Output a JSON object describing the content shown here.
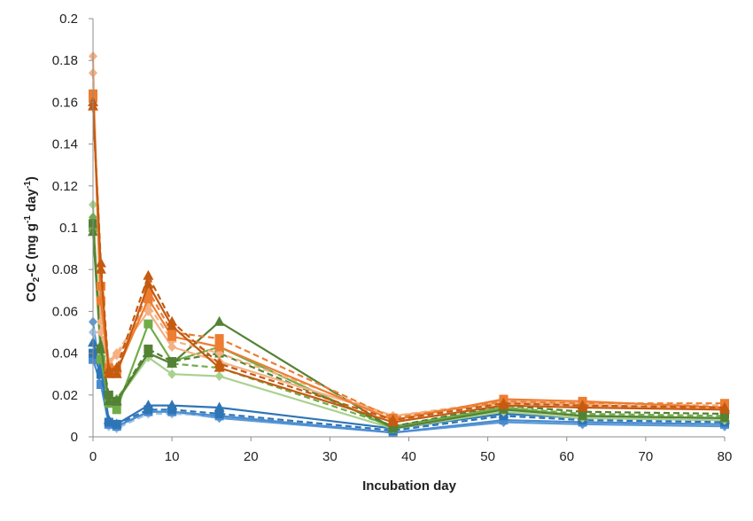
{
  "chart_data": {
    "type": "line",
    "title": "",
    "xlabel": "Incubation day",
    "ylabel": {
      "prefix": "CO",
      "sub": "2",
      "mid": "-C (mg g",
      "sup1": "-1",
      "mid2": " day",
      "sup2": "-1",
      "suffix": ")"
    },
    "xlim": [
      0,
      80
    ],
    "ylim": [
      0,
      0.2
    ],
    "xticks": [
      "0",
      "10",
      "20",
      "30",
      "40",
      "50",
      "60",
      "70",
      "80"
    ],
    "yticks": [
      "0",
      "0.02",
      "0.04",
      "0.06",
      "0.08",
      "0.1",
      "0.12",
      "0.14",
      "0.16",
      "0.18",
      "0.2"
    ],
    "grid": false,
    "legend": "none",
    "x": [
      0,
      1,
      2,
      3,
      7,
      10,
      16,
      38,
      52,
      62,
      80
    ],
    "series": [
      {
        "color": "#5B9BD5",
        "marker": "diamond",
        "dash": false,
        "values": [
          0.055,
          0.028,
          0.006,
          0.005,
          0.012,
          0.012,
          0.009,
          0.002,
          0.007,
          0.006,
          0.005
        ]
      },
      {
        "color": "#9DC3E6",
        "marker": "diamond",
        "dash": true,
        "values": [
          0.05,
          0.026,
          0.005,
          0.004,
          0.011,
          0.011,
          0.01,
          0.002,
          0.008,
          0.007,
          0.006
        ]
      },
      {
        "color": "#4A8BD0",
        "marker": "square",
        "dash": false,
        "values": [
          0.037,
          0.025,
          0.006,
          0.005,
          0.012,
          0.012,
          0.01,
          0.002,
          0.008,
          0.007,
          0.006
        ]
      },
      {
        "color": "#2E75B6",
        "marker": "square",
        "dash": true,
        "values": [
          0.04,
          0.03,
          0.007,
          0.006,
          0.013,
          0.013,
          0.011,
          0.003,
          0.01,
          0.008,
          0.007
        ]
      },
      {
        "color": "#2E75B6",
        "marker": "triangle",
        "dash": false,
        "values": [
          0.045,
          0.033,
          0.008,
          0.006,
          0.015,
          0.015,
          0.014,
          0.004,
          0.011,
          0.009,
          0.008
        ]
      },
      {
        "color": "#A9D18E",
        "marker": "diamond",
        "dash": false,
        "values": [
          0.111,
          0.04,
          0.016,
          0.017,
          0.038,
          0.03,
          0.029,
          0.004,
          0.012,
          0.009,
          0.008
        ]
      },
      {
        "color": "#70AD47",
        "marker": "diamond",
        "dash": true,
        "values": [
          0.105,
          0.038,
          0.018,
          0.018,
          0.04,
          0.035,
          0.033,
          0.005,
          0.014,
          0.011,
          0.01
        ]
      },
      {
        "color": "#70AD47",
        "marker": "square",
        "dash": false,
        "values": [
          0.1,
          0.037,
          0.016,
          0.013,
          0.054,
          0.036,
          0.043,
          0.004,
          0.014,
          0.01,
          0.009
        ]
      },
      {
        "color": "#538135",
        "marker": "square",
        "dash": true,
        "values": [
          0.102,
          0.042,
          0.02,
          0.017,
          0.042,
          0.036,
          0.04,
          0.005,
          0.015,
          0.012,
          0.011
        ]
      },
      {
        "color": "#548235",
        "marker": "triangle",
        "dash": false,
        "values": [
          0.098,
          0.044,
          0.017,
          0.017,
          0.04,
          0.035,
          0.055,
          0.004,
          0.013,
          0.01,
          0.009
        ]
      },
      {
        "color": "#F4B183",
        "marker": "diamond",
        "dash": false,
        "values": [
          0.182,
          0.05,
          0.035,
          0.039,
          0.06,
          0.043,
          0.036,
          0.01,
          0.016,
          0.015,
          0.014
        ]
      },
      {
        "color": "#F4B183",
        "marker": "diamond",
        "dash": true,
        "values": [
          0.174,
          0.055,
          0.036,
          0.04,
          0.063,
          0.046,
          0.04,
          0.01,
          0.017,
          0.016,
          0.015
        ]
      },
      {
        "color": "#ED7D31",
        "marker": "square",
        "dash": false,
        "values": [
          0.164,
          0.065,
          0.031,
          0.031,
          0.066,
          0.048,
          0.043,
          0.008,
          0.018,
          0.017,
          0.014
        ]
      },
      {
        "color": "#ED7D31",
        "marker": "square",
        "dash": true,
        "values": [
          0.162,
          0.072,
          0.033,
          0.032,
          0.07,
          0.05,
          0.047,
          0.009,
          0.017,
          0.016,
          0.016
        ]
      },
      {
        "color": "#C55A11",
        "marker": "triangle",
        "dash": false,
        "values": [
          0.16,
          0.08,
          0.03,
          0.03,
          0.073,
          0.053,
          0.033,
          0.007,
          0.015,
          0.014,
          0.013
        ]
      },
      {
        "color": "#C55A11",
        "marker": "triangle",
        "dash": true,
        "values": [
          0.158,
          0.083,
          0.032,
          0.033,
          0.077,
          0.055,
          0.035,
          0.008,
          0.016,
          0.015,
          0.014
        ]
      }
    ]
  }
}
